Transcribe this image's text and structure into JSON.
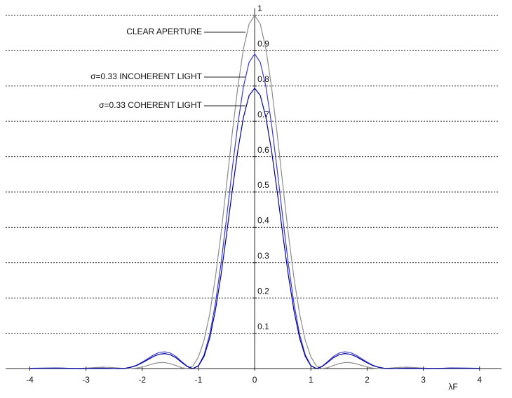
{
  "chart_data": {
    "type": "line",
    "x": [
      -4,
      -3.5,
      -3.1,
      -2.9,
      -2.7,
      -2.5,
      -2.4,
      -2.3,
      -2.2,
      -2.1,
      -2,
      -1.9,
      -1.8,
      -1.7,
      -1.6,
      -1.5,
      -1.4,
      -1.3,
      -1.2,
      -1.1,
      -1,
      -0.9,
      -0.8,
      -0.7,
      -0.6,
      -0.5,
      -0.4,
      -0.3,
      -0.2,
      -0.1,
      0,
      0.1,
      0.2,
      0.3,
      0.4,
      0.5,
      0.6,
      0.7,
      0.8,
      0.9,
      1,
      1.1,
      1.2,
      1.3,
      1.4,
      1.5,
      1.6,
      1.7,
      1.8,
      1.9,
      2,
      2.1,
      2.2,
      2.3,
      2.4,
      2.5,
      2.7,
      2.9,
      3.1,
      3.5,
      4
    ],
    "series": [
      {
        "name": "CLEAR APERTURE",
        "color": "#8c8c8c",
        "values": [
          0.0006,
          0.001,
          0.0005,
          0.0023,
          0.0041,
          0.0026,
          0.0014,
          0.0003,
          0.0001,
          0.0013,
          0.0046,
          0.009,
          0.0138,
          0.0168,
          0.017,
          0.014,
          0.0085,
          0.0023,
          0.0002,
          0.0073,
          0.0328,
          0.0803,
          0.154,
          0.256,
          0.38,
          0.521,
          0.665,
          0.797,
          0.905,
          0.9755,
          1,
          0.9755,
          0.905,
          0.797,
          0.665,
          0.521,
          0.38,
          0.256,
          0.154,
          0.0803,
          0.0328,
          0.0073,
          0.0002,
          0.0023,
          0.0085,
          0.014,
          0.017,
          0.0168,
          0.0138,
          0.009,
          0.0046,
          0.0013,
          0.0001,
          0.0003,
          0.0014,
          0.0026,
          0.0041,
          0.0023,
          0.0005,
          0.001,
          0.0006
        ]
      },
      {
        "name": "σ=0.33 INCOHERENT LIGHT",
        "color": "#3a3ad6",
        "values": [
          0.0008,
          0.0015,
          0,
          0.0006,
          0.0012,
          0.0001,
          0,
          0.0011,
          0.0041,
          0.0096,
          0.0183,
          0.0283,
          0.0385,
          0.0455,
          0.0475,
          0.0438,
          0.0343,
          0.02,
          0.0065,
          0,
          0.0084,
          0.0388,
          0.0963,
          0.183,
          0.2956,
          0.4263,
          0.5635,
          0.692,
          0.798,
          0.867,
          0.891,
          0.867,
          0.798,
          0.692,
          0.5635,
          0.4263,
          0.2956,
          0.183,
          0.0963,
          0.0388,
          0.0084,
          0,
          0.0065,
          0.02,
          0.0343,
          0.0438,
          0.0475,
          0.0455,
          0.0385,
          0.0283,
          0.0183,
          0.0096,
          0.0041,
          0.0011,
          0,
          0.0001,
          0.0012,
          0.0006,
          0,
          0.0015,
          0.0008
        ]
      },
      {
        "name": "σ=0.33 COHERENT LIGHT",
        "color": "#00009a",
        "values": [
          0.0007,
          0.0013,
          0,
          0.0005,
          0.001,
          0.0001,
          0,
          0.0009,
          0.0037,
          0.0085,
          0.0163,
          0.0252,
          0.0343,
          0.0405,
          0.0424,
          0.0391,
          0.0306,
          0.0178,
          0.0058,
          0,
          0.0074,
          0.0345,
          0.0858,
          0.1631,
          0.2634,
          0.38,
          0.502,
          0.617,
          0.711,
          0.773,
          0.794,
          0.773,
          0.711,
          0.617,
          0.502,
          0.38,
          0.2634,
          0.1631,
          0.0858,
          0.0345,
          0.0074,
          0,
          0.0058,
          0.0178,
          0.0306,
          0.0391,
          0.0424,
          0.0405,
          0.0343,
          0.0252,
          0.0163,
          0.0085,
          0.0037,
          0.0009,
          0,
          0.0001,
          0.001,
          0.0005,
          0,
          0.0013,
          0.0007
        ]
      }
    ],
    "xlabel": "λF",
    "xlim": [
      -4.43,
      4.39
    ],
    "xticks": [
      -4,
      -3,
      -2,
      -1,
      0,
      1,
      2,
      3,
      4
    ],
    "ylim": [
      0,
      1.02
    ],
    "yticks": [
      0.1,
      0.2,
      0.3,
      0.4,
      0.5,
      0.6,
      0.7,
      0.8,
      0.9,
      1
    ],
    "grid": true
  }
}
